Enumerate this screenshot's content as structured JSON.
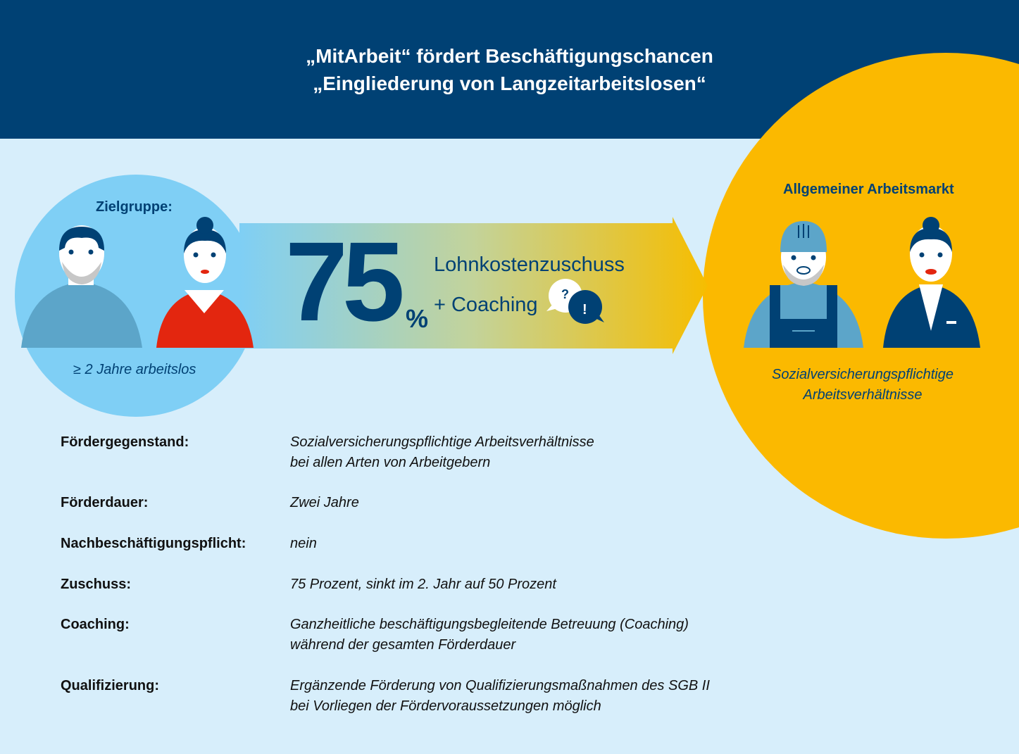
{
  "header": {
    "title_line1": "„MitArbeit“ fördert Beschäftigungschancen",
    "title_line2": "„Eingliederung von Langzeitarbeitslosen“"
  },
  "target": {
    "label": "Zielgruppe:",
    "condition": "≥ 2 Jahre arbeitslos"
  },
  "arrow": {
    "percent": "75",
    "percent_sign": "%",
    "line1": "Lohnkostenzuschuss",
    "line2": "+ Coaching",
    "bubble_q": "?",
    "bubble_e": "!"
  },
  "market": {
    "label": "Allgemeiner Arbeitsmarkt",
    "line1": "Sozialversicherungspflichtige",
    "line2": "Arbeitsverhältnisse"
  },
  "details": [
    {
      "label": "Fördergegenstand:",
      "lines": [
        "Sozialversicherungspflichtige Arbeitsverhältnisse",
        "bei allen Arten von Arbeitgebern"
      ]
    },
    {
      "label": "Förderdauer:",
      "lines": [
        "Zwei Jahre"
      ]
    },
    {
      "label": "Nachbeschäftigungspflicht:",
      "lines": [
        "nein"
      ]
    },
    {
      "label": "Zuschuss:",
      "lines": [
        "75 Prozent, sinkt im 2. Jahr auf 50  Prozent"
      ]
    },
    {
      "label": "Coaching:",
      "lines": [
        "Ganzheitliche beschäftigungsbegleitende Betreuung (Coaching)",
        "während der gesamten Förderdauer"
      ]
    },
    {
      "label": "Qualifizierung:",
      "lines": [
        "Ergänzende Förderung von Qualifizierungsmaßnahmen des SGB II",
        "bei Vorliegen der Fördervoraussetzungen möglich"
      ]
    }
  ],
  "colors": {
    "navy": "#004174",
    "sky": "#7fcff5",
    "yellow": "#fbb900",
    "bg": "#d7eefb",
    "red": "#e3260f"
  }
}
